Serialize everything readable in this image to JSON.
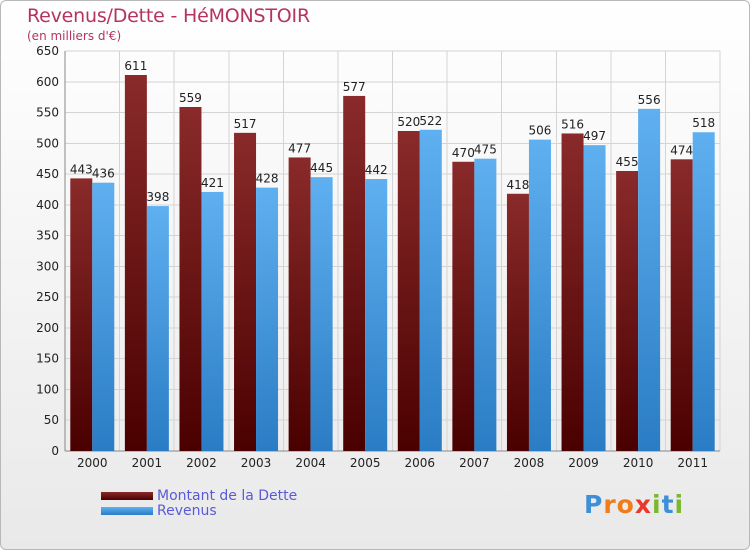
{
  "chart_data": {
    "type": "bar",
    "title": "Revenus/Dette - HéMONSTOIR",
    "subtitle": "(en milliers d'€)",
    "categories": [
      "2000",
      "2001",
      "2002",
      "2003",
      "2004",
      "2005",
      "2006",
      "2007",
      "2008",
      "2009",
      "2010",
      "2011"
    ],
    "series": [
      {
        "name": "Montant de la Dette",
        "color": "#7a1b1b",
        "values": [
          443,
          611,
          559,
          517,
          477,
          577,
          520,
          470,
          418,
          516,
          455,
          474
        ]
      },
      {
        "name": "Revenus",
        "color": "#4ea3e6",
        "values": [
          436,
          398,
          421,
          428,
          445,
          442,
          522,
          475,
          506,
          497,
          556,
          518
        ]
      }
    ],
    "ylim": [
      0,
      650
    ],
    "yticks": [
      0,
      50,
      100,
      150,
      200,
      250,
      300,
      350,
      400,
      450,
      500,
      550,
      600,
      650
    ],
    "grid": true,
    "legend": "bottom-left"
  },
  "branding": {
    "letters": [
      "P",
      "r",
      "o",
      "x",
      "i",
      "t",
      "i"
    ],
    "colors": [
      "#3e8fd6",
      "#f07c1a",
      "#f07c1a",
      "#e8392b",
      "#7ab82e",
      "#3e8fd6",
      "#7ab82e"
    ]
  }
}
